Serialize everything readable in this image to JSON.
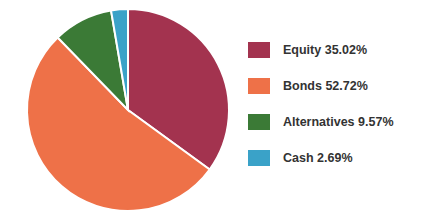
{
  "chart_data": {
    "type": "pie",
    "categories": [
      "Equity",
      "Bonds",
      "Alternatives",
      "Cash"
    ],
    "values": [
      35.02,
      52.72,
      9.57,
      2.69
    ],
    "value_labels": [
      "35.02%",
      "52.72%",
      "9.57%",
      "2.69%"
    ],
    "colors": [
      "#a3334f",
      "#ee7148",
      "#3b7a36",
      "#3aa2c8"
    ],
    "legend": "right",
    "data_labels": false
  }
}
